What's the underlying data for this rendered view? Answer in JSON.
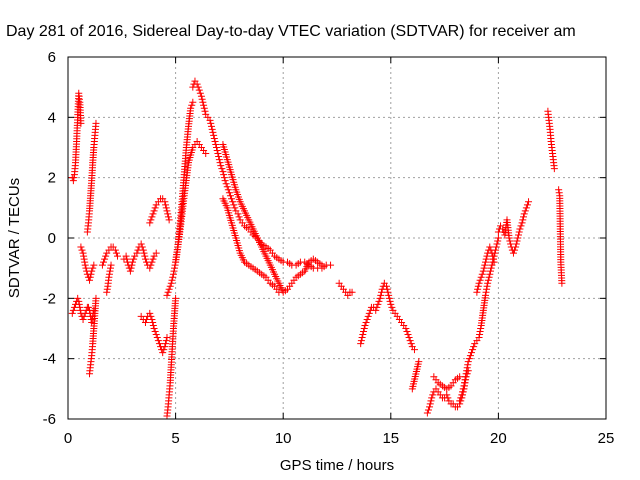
{
  "chart_data": {
    "type": "scatter",
    "title": "Day 281 of 2016, Sidereal Day-to-day VTEC variation (SDTVAR) for receiver am",
    "xlabel": "GPS time / hours",
    "ylabel": "SDTVAR / TECUs",
    "xlim": [
      0,
      25
    ],
    "ylim": [
      -6,
      6
    ],
    "xticks": [
      "0",
      "5",
      "10",
      "15",
      "20",
      "25"
    ],
    "yticks": [
      "-6",
      "-4",
      "-2",
      "0",
      "2",
      "4",
      "6"
    ],
    "grid": true,
    "legend": "none",
    "marker": "+",
    "color": "#ff0000",
    "series": [
      {
        "x": [
          0.2,
          0.25,
          0.3,
          0.35,
          0.4,
          0.45,
          0.5,
          0.55,
          0.6,
          0.65,
          0.7,
          0.75,
          0.8,
          0.85,
          0.9,
          0.95,
          1.0,
          1.05,
          1.1,
          1.15,
          1.2
        ],
        "y": [
          -2.5,
          -2.4,
          -2.3,
          -2.2,
          -2.1,
          -2.0,
          -2.1,
          -2.3,
          -2.5,
          -2.6,
          -2.7,
          -2.6,
          -2.5,
          -2.4,
          -2.3,
          -2.3,
          -2.4,
          -2.6,
          -2.8,
          -2.6,
          -2.4
        ]
      },
      {
        "x": [
          0.2,
          0.25,
          0.3,
          0.35,
          0.4,
          0.45,
          0.5,
          0.55,
          0.6
        ],
        "y": [
          2.0,
          1.9,
          2.1,
          2.5,
          3.2,
          4.0,
          4.8,
          4.5,
          3.8
        ]
      },
      {
        "x": [
          0.6,
          0.7,
          0.8,
          0.9,
          1.0,
          1.1,
          1.2
        ],
        "y": [
          -0.3,
          -0.5,
          -0.9,
          -1.2,
          -1.4,
          -1.1,
          -0.9
        ]
      },
      {
        "x": [
          1.0,
          1.05,
          1.1,
          1.15,
          1.2,
          1.25,
          1.3
        ],
        "y": [
          -4.5,
          -4.2,
          -3.9,
          -3.5,
          -3.0,
          -2.5,
          -2.0
        ]
      },
      {
        "x": [
          0.9,
          0.95,
          1.0,
          1.05,
          1.1,
          1.15,
          1.2,
          1.25,
          1.3
        ],
        "y": [
          0.2,
          0.5,
          0.9,
          1.4,
          1.9,
          2.5,
          3.0,
          3.4,
          3.8
        ]
      },
      {
        "x": [
          1.6,
          1.7,
          1.8,
          1.9,
          2.0,
          2.1,
          2.2,
          2.3
        ],
        "y": [
          -0.9,
          -0.7,
          -0.5,
          -0.4,
          -0.3,
          -0.3,
          -0.4,
          -0.6
        ]
      },
      {
        "x": [
          1.8,
          1.85,
          1.9,
          1.95,
          2.0
        ],
        "y": [
          -1.8,
          -1.6,
          -1.3,
          -1.1,
          -0.9
        ]
      },
      {
        "x": [
          2.6,
          2.7,
          2.8,
          2.9,
          3.0,
          3.1,
          3.2,
          3.3,
          3.4,
          3.5,
          3.6,
          3.7,
          3.8,
          3.9,
          4.0,
          4.1
        ],
        "y": [
          -0.7,
          -0.6,
          -0.9,
          -1.1,
          -0.8,
          -0.6,
          -0.5,
          -0.3,
          -0.2,
          -0.4,
          -0.7,
          -0.9,
          -1.0,
          -0.8,
          -0.6,
          -0.5
        ]
      },
      {
        "x": [
          3.4,
          3.5,
          3.6,
          3.7,
          3.8,
          3.9,
          4.0,
          4.1,
          4.2,
          4.3,
          4.4,
          4.5,
          4.6
        ],
        "y": [
          -2.6,
          -2.7,
          -2.8,
          -2.6,
          -2.5,
          -2.7,
          -3.0,
          -3.2,
          -3.4,
          -3.6,
          -3.8,
          -3.6,
          -3.3
        ]
      },
      {
        "x": [
          3.8,
          3.9,
          4.0,
          4.1,
          4.2,
          4.3,
          4.4,
          4.5,
          4.6,
          4.7
        ],
        "y": [
          0.5,
          0.7,
          0.9,
          1.1,
          1.2,
          1.3,
          1.3,
          1.2,
          0.9,
          0.6
        ]
      },
      {
        "x": [
          4.6,
          4.65,
          4.7,
          4.75,
          4.8,
          4.85,
          4.9,
          4.95,
          5.0
        ],
        "y": [
          -5.9,
          -5.6,
          -5.2,
          -4.8,
          -4.2,
          -3.6,
          -3.0,
          -2.5,
          -2.0
        ]
      },
      {
        "x": [
          4.6,
          4.7,
          4.8,
          4.9,
          5.0,
          5.1,
          5.2,
          5.3,
          5.4,
          5.5,
          5.6,
          5.7,
          5.8
        ],
        "y": [
          -1.9,
          -1.7,
          -1.5,
          -1.2,
          -0.8,
          -0.3,
          0.4,
          1.2,
          2.1,
          3.0,
          3.7,
          4.3,
          4.5
        ]
      },
      {
        "x": [
          5.0,
          5.2,
          5.4,
          5.6,
          5.8,
          6.0,
          6.2,
          6.4
        ],
        "y": [
          -0.8,
          0.2,
          1.4,
          2.5,
          3.0,
          3.2,
          3.0,
          2.8
        ]
      },
      {
        "x": [
          5.8,
          5.9,
          6.0,
          6.1,
          6.2,
          6.3,
          6.4,
          6.5,
          6.6,
          6.7,
          6.8,
          6.9,
          7.0,
          7.1,
          7.2,
          7.3,
          7.4,
          7.5,
          7.6,
          7.7,
          7.8,
          7.9,
          8.0,
          8.2,
          8.4,
          8.6,
          8.8,
          9.0,
          9.2,
          9.4,
          9.6,
          9.8,
          10.0,
          10.2,
          10.4,
          10.6,
          10.8,
          11.0,
          11.2,
          11.4,
          11.6,
          11.8,
          12.0,
          12.2
        ],
        "y": [
          5.0,
          5.2,
          5.1,
          4.9,
          4.7,
          4.4,
          4.1,
          4.0,
          3.9,
          3.6,
          3.3,
          3.0,
          2.7,
          2.4,
          2.2,
          1.9,
          1.7,
          1.5,
          1.3,
          1.1,
          0.9,
          0.8,
          0.6,
          0.4,
          0.3,
          0.1,
          0.0,
          -0.2,
          -0.3,
          -0.4,
          -0.6,
          -0.7,
          -0.8,
          -0.8,
          -0.9,
          -0.9,
          -0.8,
          -0.8,
          -0.9,
          -1.0,
          -1.0,
          -1.0,
          -0.9,
          -0.9
        ]
      },
      {
        "x": [
          7.2,
          7.4,
          7.6,
          7.8,
          8.0,
          8.2,
          8.4,
          8.6,
          8.8,
          9.0,
          9.2,
          9.4,
          9.6,
          9.8,
          10.0,
          10.2,
          10.4,
          10.6,
          10.8,
          11.0,
          11.2,
          11.4,
          11.6,
          11.8
        ],
        "y": [
          3.1,
          2.6,
          2.1,
          1.6,
          1.2,
          0.9,
          0.6,
          0.3,
          0.0,
          -0.3,
          -0.6,
          -0.9,
          -1.2,
          -1.5,
          -1.8,
          -1.7,
          -1.5,
          -1.3,
          -1.2,
          -1.1,
          -0.8,
          -0.7,
          -0.8,
          -0.9
        ]
      },
      {
        "x": [
          7.2,
          7.4,
          7.6,
          7.8,
          8.0,
          8.2,
          8.4,
          8.6,
          8.8,
          9.0,
          9.2,
          9.4,
          9.6,
          9.8
        ],
        "y": [
          1.3,
          1.0,
          0.5,
          0.0,
          -0.5,
          -0.8,
          -0.9,
          -1.0,
          -1.1,
          -1.2,
          -1.3,
          -1.5,
          -1.6,
          -1.8
        ]
      },
      {
        "x": [
          12.6,
          12.7,
          12.8,
          12.9,
          13.0,
          13.1,
          13.2
        ],
        "y": [
          -1.5,
          -1.6,
          -1.7,
          -1.8,
          -1.9,
          -1.8,
          -1.8
        ]
      },
      {
        "x": [
          13.6,
          13.7,
          13.8,
          13.9,
          14.0,
          14.1,
          14.2,
          14.3,
          14.4,
          14.5,
          14.6,
          14.7,
          14.8,
          14.9,
          15.0,
          15.1,
          15.2,
          15.3,
          15.4,
          15.5,
          15.6,
          15.7,
          15.8,
          15.9,
          16.0,
          16.1
        ],
        "y": [
          -3.5,
          -3.2,
          -2.9,
          -2.7,
          -2.5,
          -2.3,
          -2.3,
          -2.4,
          -2.2,
          -2.0,
          -1.7,
          -1.5,
          -1.6,
          -1.9,
          -2.2,
          -2.4,
          -2.5,
          -2.6,
          -2.7,
          -2.8,
          -2.9,
          -3.0,
          -3.2,
          -3.4,
          -3.6,
          -3.7
        ]
      },
      {
        "x": [
          16.0,
          16.3
        ],
        "y": [
          -5.0,
          -4.1
        ]
      },
      {
        "x": [
          16.7,
          16.8,
          16.9,
          17.0,
          17.1,
          17.2,
          17.3,
          17.4,
          17.5,
          17.6,
          17.7,
          17.8,
          17.9,
          18.0,
          18.1,
          18.2,
          18.3,
          18.4,
          18.5,
          18.6
        ],
        "y": [
          -5.8,
          -5.6,
          -5.3,
          -5.1,
          -5.0,
          -5.1,
          -5.2,
          -5.3,
          -5.3,
          -5.2,
          -5.4,
          -5.5,
          -5.5,
          -5.6,
          -5.6,
          -5.5,
          -5.3,
          -5.0,
          -4.6,
          -4.4
        ]
      },
      {
        "x": [
          17.0,
          17.2,
          17.4,
          17.6,
          17.8,
          18.0,
          18.2
        ],
        "y": [
          -4.6,
          -4.8,
          -4.9,
          -5.0,
          -4.9,
          -4.7,
          -4.6
        ]
      },
      {
        "x": [
          18.2,
          18.3,
          18.4,
          18.5,
          18.6,
          18.7,
          18.8,
          18.9,
          19.0,
          19.1,
          19.2,
          19.3,
          19.4,
          19.5,
          19.6,
          19.7,
          19.8,
          19.9,
          20.0
        ],
        "y": [
          -5.4,
          -5.2,
          -4.9,
          -4.5,
          -4.1,
          -3.9,
          -3.7,
          -3.5,
          -3.4,
          -3.3,
          -2.9,
          -2.4,
          -1.9,
          -1.5,
          -1.2,
          -0.9,
          -0.6,
          -0.3,
          0.0
        ]
      },
      {
        "x": [
          19.0,
          19.1,
          19.2,
          19.3,
          19.4,
          19.5,
          19.6,
          19.7,
          19.8
        ],
        "y": [
          -1.8,
          -1.5,
          -1.3,
          -1.1,
          -0.8,
          -0.5,
          -0.3,
          -0.5,
          -0.8
        ]
      },
      {
        "x": [
          20.0,
          20.1,
          20.2,
          20.3,
          20.4,
          20.5,
          20.6,
          20.7,
          20.8,
          20.9,
          21.0,
          21.1,
          21.2,
          21.3,
          21.4
        ],
        "y": [
          0.2,
          0.4,
          0.3,
          0.1,
          0.6,
          0.0,
          -0.3,
          -0.5,
          -0.3,
          0.0,
          0.3,
          0.5,
          0.8,
          1.0,
          1.2
        ]
      },
      {
        "x": [
          22.3,
          22.35,
          22.4,
          22.45,
          22.5,
          22.55,
          22.6
        ],
        "y": [
          4.2,
          3.9,
          3.6,
          3.2,
          2.9,
          2.6,
          2.3
        ]
      },
      {
        "x": [
          22.8,
          22.85,
          22.9,
          22.95
        ],
        "y": [
          1.6,
          1.4,
          -0.8,
          -1.5
        ]
      }
    ]
  }
}
